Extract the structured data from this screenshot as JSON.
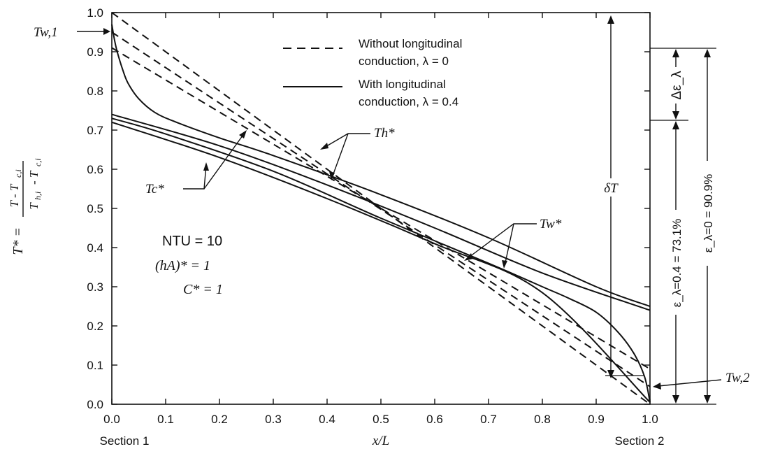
{
  "chart_data": {
    "type": "line",
    "xlabel": "x/L",
    "ylabel": "T* = (T - T_c,i) / (T_h,i - T_c,i)",
    "xlim": [
      0,
      1
    ],
    "ylim": [
      0,
      1
    ],
    "x_ticks": [
      "0.0",
      "0.1",
      "0.2",
      "0.3",
      "0.4",
      "0.5",
      "0.6",
      "0.7",
      "0.8",
      "0.9",
      "1.0"
    ],
    "y_ticks": [
      "0.0",
      "0.1",
      "0.2",
      "0.3",
      "0.4",
      "0.5",
      "0.6",
      "0.7",
      "0.8",
      "0.9",
      "1.0"
    ],
    "x_sub_labels": {
      "left": "Section 1",
      "right": "Section 2"
    },
    "grid": false,
    "legend_position": "top-center",
    "legend": [
      {
        "style": "dashed",
        "line1": "Without longitudinal",
        "line2": "conduction, λ = 0"
      },
      {
        "style": "solid",
        "line1": "With longitudinal",
        "line2": "conduction, λ = 0.4"
      }
    ],
    "parameters": [
      "NTU = 10",
      "(hA)* = 1",
      "C* = 1"
    ],
    "curve_labels": {
      "hot": "Th*",
      "cold": "Tc*",
      "wall": "Tw*"
    },
    "point_labels": {
      "wall_inlet": "Tw,1",
      "wall_outlet": "Tw,2"
    },
    "right_annotations": {
      "delta_T": "δT",
      "delta_eps": "Δε_λ",
      "eps_lambda_04": "ε_λ=0.4 = 73.1%",
      "eps_lambda_0": "ε_λ=0 = 90.9%"
    },
    "series": [
      {
        "style": "dashed",
        "x": [
          0,
          1
        ],
        "values": [
          1.0,
          0.0
        ]
      },
      {
        "style": "dashed",
        "x": [
          0,
          1
        ],
        "values": [
          0.95,
          0.045
        ]
      },
      {
        "style": "dashed",
        "x": [
          0,
          1
        ],
        "values": [
          0.91,
          0.09
        ]
      },
      {
        "style": "solid",
        "x": [
          0.0,
          0.005,
          0.01,
          0.02,
          0.03,
          0.05,
          0.08,
          0.12,
          0.2,
          0.3,
          0.5,
          0.7,
          0.9,
          1.0
        ],
        "values": [
          0.97,
          0.93,
          0.9,
          0.855,
          0.82,
          0.78,
          0.745,
          0.72,
          0.68,
          0.635,
          0.535,
          0.425,
          0.3,
          0.25
        ]
      },
      {
        "style": "solid",
        "x": [
          0.0,
          0.2,
          0.4,
          0.6,
          0.8,
          1.0
        ],
        "values": [
          0.74,
          0.66,
          0.56,
          0.45,
          0.335,
          0.24
        ]
      },
      {
        "style": "solid",
        "x": [
          0.0,
          0.1,
          0.3,
          0.5,
          0.7,
          0.8,
          0.85,
          0.9,
          0.94,
          0.97,
          0.99,
          1.0
        ],
        "values": [
          0.73,
          0.69,
          0.595,
          0.475,
          0.36,
          0.3,
          0.27,
          0.235,
          0.185,
          0.13,
          0.07,
          0.005
        ]
      },
      {
        "style": "solid",
        "x": [
          0.0,
          0.2,
          0.4,
          0.6,
          0.8,
          1.0
        ],
        "values": [
          0.72,
          0.63,
          0.525,
          0.41,
          0.285,
          0.005
        ]
      }
    ]
  }
}
